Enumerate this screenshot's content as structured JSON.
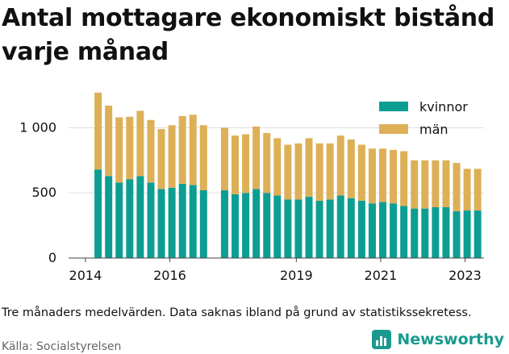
{
  "title": "Antal mottagare ekonomiskt bistånd varje månad",
  "note": "Tre månaders medelvärden. Data saknas ibland på grund av statistikssekretess.",
  "source": "Källa: Socialstyrelsen",
  "brand": {
    "name": "Newsworthy",
    "icon": "newsworthy-logo-icon"
  },
  "colors": {
    "kvinnor": "#0d9e93",
    "man": "#ddb057",
    "grid": "#dddddd",
    "text": "#111111"
  },
  "chart_data": {
    "type": "bar",
    "stacked": true,
    "ylim": [
      0,
      1300
    ],
    "yticks": [
      0,
      500,
      1000
    ],
    "ytick_labels": [
      "0",
      "500",
      "1 000"
    ],
    "xticks": [
      2014,
      2016,
      2019,
      2021,
      2023
    ],
    "xtick_labels": [
      "2014",
      "2016",
      "2019",
      "2021",
      "2023"
    ],
    "xlim": [
      2013.6,
      2023.45
    ],
    "grid": true,
    "legend_position": "top-right",
    "x": [
      2014.3,
      2014.55,
      2014.8,
      2015.05,
      2015.3,
      2015.55,
      2015.8,
      2016.05,
      2016.3,
      2016.55,
      2016.8,
      2017.3,
      2017.55,
      2017.8,
      2018.05,
      2018.3,
      2018.55,
      2018.8,
      2019.05,
      2019.3,
      2019.55,
      2019.8,
      2020.05,
      2020.3,
      2020.55,
      2020.8,
      2021.05,
      2021.3,
      2021.55,
      2021.8,
      2022.05,
      2022.3,
      2022.55,
      2022.8,
      2023.05,
      2023.3
    ],
    "series": [
      {
        "name": "kvinnor",
        "values": [
          680,
          630,
          580,
          605,
          630,
          580,
          530,
          540,
          570,
          560,
          520,
          520,
          490,
          500,
          530,
          500,
          480,
          450,
          450,
          470,
          440,
          450,
          480,
          460,
          440,
          420,
          430,
          420,
          400,
          380,
          380,
          390,
          390,
          360,
          365,
          365
        ]
      },
      {
        "name": "män",
        "values": [
          590,
          540,
          500,
          480,
          500,
          480,
          460,
          480,
          520,
          540,
          500,
          480,
          450,
          450,
          480,
          460,
          440,
          420,
          430,
          450,
          440,
          430,
          460,
          450,
          430,
          420,
          410,
          410,
          420,
          370,
          370,
          360,
          360,
          370,
          320,
          320
        ]
      }
    ]
  }
}
